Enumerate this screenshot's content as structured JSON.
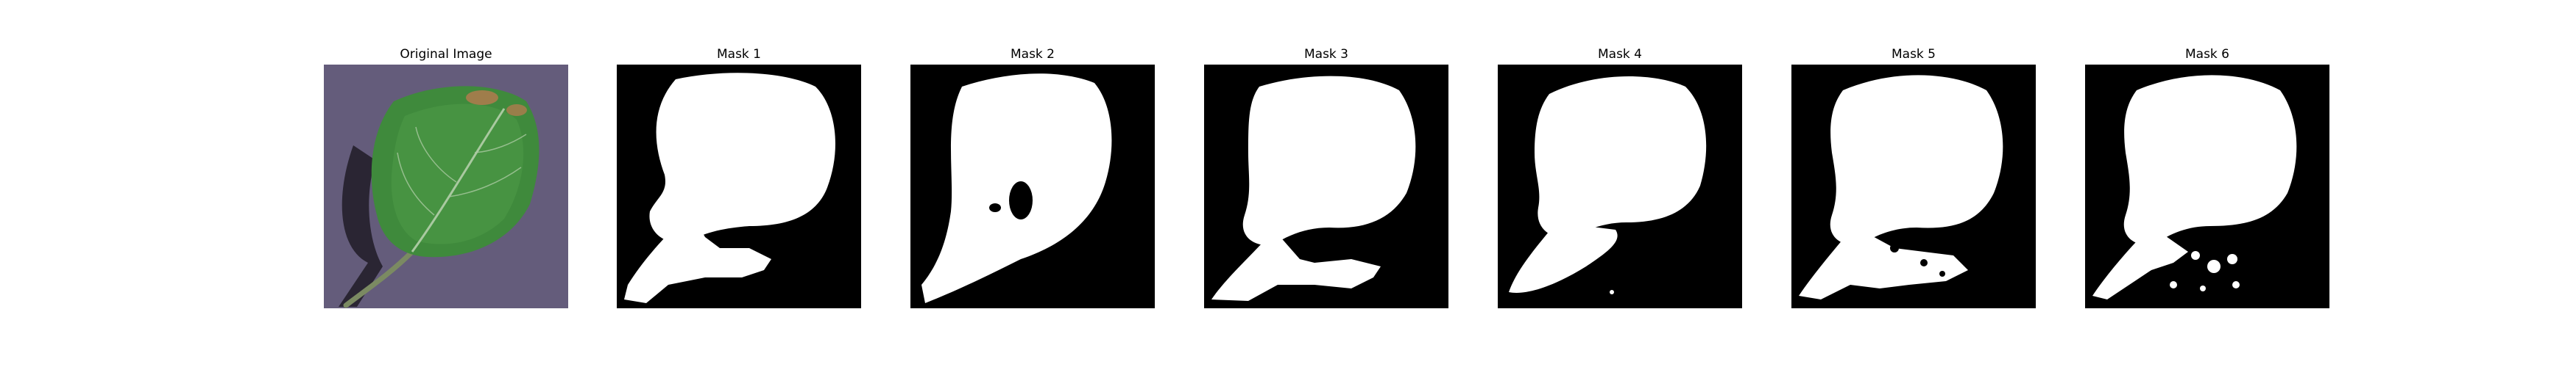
{
  "figure": {
    "panels": [
      {
        "title": "Original Image",
        "kind": "photo"
      },
      {
        "title": "Mask 1",
        "kind": "mask"
      },
      {
        "title": "Mask 2",
        "kind": "mask"
      },
      {
        "title": "Mask 3",
        "kind": "mask"
      },
      {
        "title": "Mask 4",
        "kind": "mask"
      },
      {
        "title": "Mask 5",
        "kind": "mask"
      },
      {
        "title": "Mask 6",
        "kind": "mask"
      }
    ]
  },
  "colors": {
    "photo_background": "#5e5676",
    "leaf_green": "#3f8a3c",
    "leaf_dark": "#2c6b2b",
    "leaf_vein": "#a9c9a0",
    "stem": "#7b8a62",
    "shadow": "#231f2b",
    "lesion": "#b07a4e",
    "mask_background": "#000000",
    "mask_foreground": "#ffffff"
  }
}
